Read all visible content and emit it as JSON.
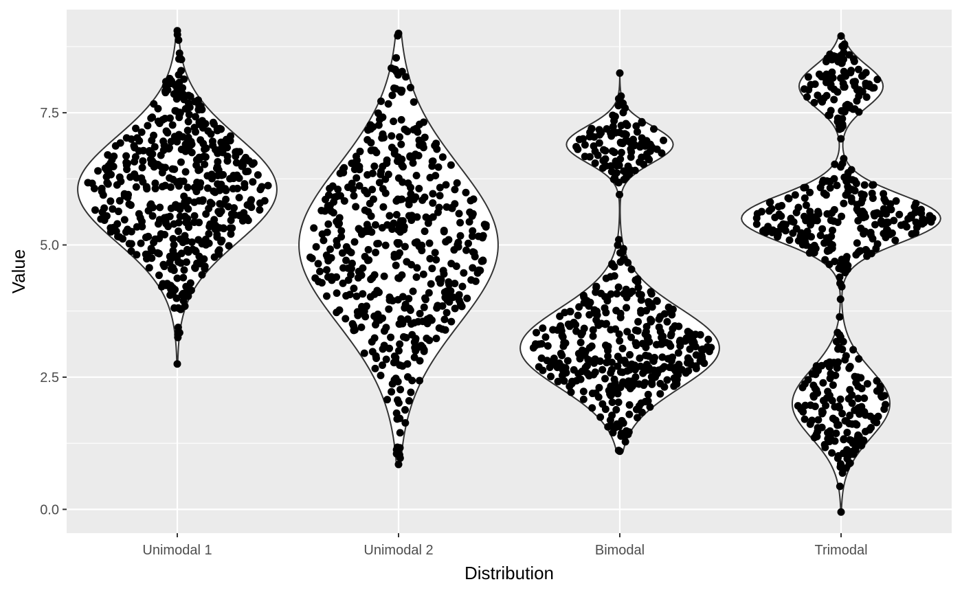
{
  "chart_data": {
    "type": "violin",
    "title": "",
    "xlabel": "Distribution",
    "ylabel": "Value",
    "categories": [
      "Unimodal 1",
      "Unimodal 2",
      "Bimodal",
      "Trimodal"
    ],
    "ylim": [
      -0.45,
      9.45
    ],
    "y_ticks": [
      0.0,
      2.5,
      5.0,
      7.5
    ],
    "y_tick_labels": [
      "0.0",
      "2.5",
      "5.0",
      "7.5"
    ],
    "grid": true,
    "legend": "none",
    "points_per_group": 500,
    "point_color": "#000000",
    "violin_fill": "#ffffff",
    "violin_stroke": "#333333",
    "panel_background": "#ebebeb",
    "grid_color": "#ffffff",
    "groups": [
      {
        "name": "Unimodal 1",
        "min": 2.75,
        "max": 9.05,
        "components": [
          {
            "weight": 1.0,
            "mean": 6.05,
            "sd": 1.0
          }
        ]
      },
      {
        "name": "Unimodal 2",
        "min": 0.85,
        "max": 9.0,
        "components": [
          {
            "weight": 1.0,
            "mean": 5.0,
            "sd": 1.5
          }
        ]
      },
      {
        "name": "Bimodal",
        "min": 1.1,
        "max": 8.25,
        "components": [
          {
            "weight": 0.8,
            "mean": 3.05,
            "sd": 0.75
          },
          {
            "weight": 0.2,
            "mean": 6.9,
            "sd": 0.35
          }
        ]
      },
      {
        "name": "Trimodal",
        "min": -0.05,
        "max": 8.95,
        "components": [
          {
            "weight": 0.34,
            "mean": 2.0,
            "sd": 0.65
          },
          {
            "weight": 0.48,
            "mean": 5.5,
            "sd": 0.45
          },
          {
            "weight": 0.18,
            "mean": 8.0,
            "sd": 0.4
          }
        ]
      }
    ]
  }
}
